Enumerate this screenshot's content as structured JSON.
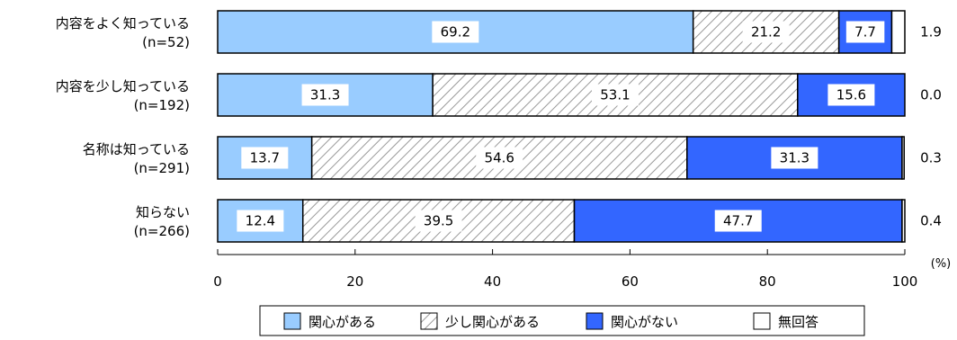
{
  "chart_data": {
    "type": "bar",
    "orientation": "horizontal",
    "stacked": true,
    "unit": "(%)",
    "xlim": [
      0,
      100
    ],
    "xticks": [
      0,
      20,
      40,
      60,
      80,
      100
    ],
    "grid": false,
    "legend_position": "bottom",
    "categories": [
      {
        "label": "内容をよく知っている",
        "n": "(n=52)"
      },
      {
        "label": "内容を少し知っている",
        "n": "(n=192)"
      },
      {
        "label": "名称は知っている",
        "n": "(n=291)"
      },
      {
        "label": "知らない",
        "n": "(n=266)"
      }
    ],
    "series": [
      {
        "name": "関心がある",
        "color": "#99ccff",
        "pattern": "solid",
        "values": [
          69.2,
          31.3,
          13.7,
          12.4
        ]
      },
      {
        "name": "少し関心がある",
        "color": "#ffffff",
        "pattern": "diagonal-hatch",
        "values": [
          21.2,
          53.1,
          54.6,
          39.5
        ]
      },
      {
        "name": "関心がない",
        "color": "#3366ff",
        "pattern": "solid",
        "values": [
          7.7,
          15.6,
          31.3,
          47.7
        ]
      },
      {
        "name": "無回答",
        "color": "#ffffff",
        "pattern": "solid",
        "values": [
          1.9,
          0.0,
          0.3,
          0.4
        ]
      }
    ],
    "value_labels": [
      [
        "69.2",
        "21.2",
        "7.7",
        "1.9"
      ],
      [
        "31.3",
        "53.1",
        "15.6",
        "0.0"
      ],
      [
        "13.7",
        "54.6",
        "31.3",
        "0.3"
      ],
      [
        "12.4",
        "39.5",
        "47.7",
        "0.4"
      ]
    ]
  }
}
